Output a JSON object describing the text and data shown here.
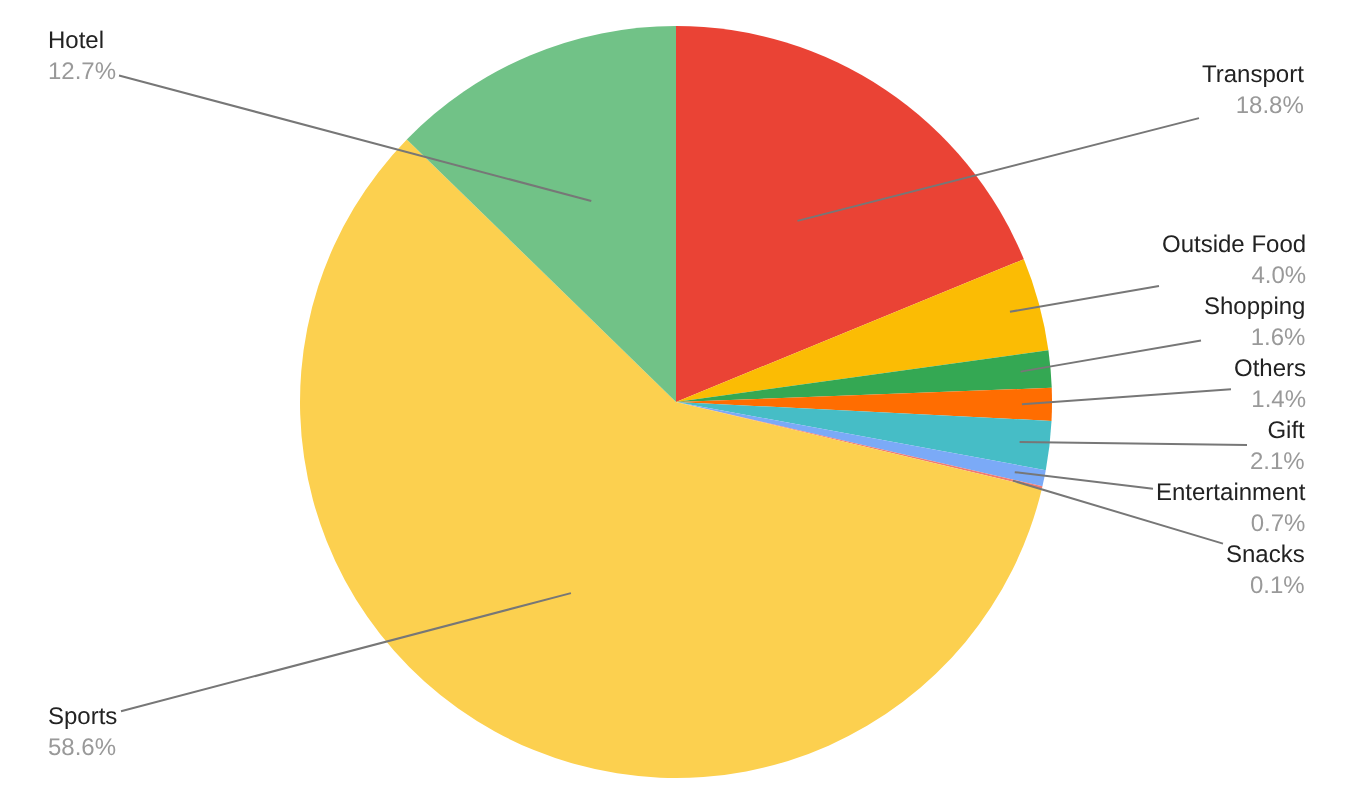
{
  "chart_data": {
    "type": "pie",
    "categories": [
      "Transport",
      "Outside Food",
      "Shopping",
      "Others",
      "Gift",
      "Entertainment",
      "Snacks",
      "Sports",
      "Hotel"
    ],
    "values": [
      18.8,
      4.0,
      1.6,
      1.4,
      2.1,
      0.7,
      0.1,
      58.6,
      12.7
    ],
    "value_labels": [
      "18.8%",
      "4.0%",
      "1.6%",
      "1.4%",
      "2.1%",
      "0.7%",
      "0.1%",
      "58.6%",
      "12.7%"
    ],
    "colors": [
      "#ea4335",
      "#fbbc04",
      "#34a853",
      "#ff6d01",
      "#46bdc6",
      "#7baaf7",
      "#f07b72",
      "#fcd04f",
      "#71c287"
    ]
  }
}
